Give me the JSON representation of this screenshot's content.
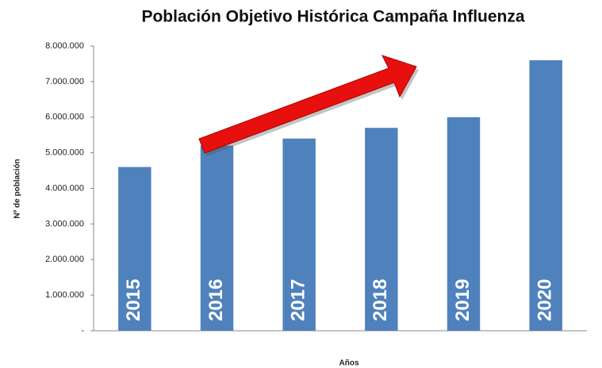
{
  "chart_data": {
    "type": "bar",
    "title": "Población Objetivo Histórica Campaña Influenza",
    "x_label": "Años",
    "y_label": "Nº de población",
    "categories": [
      "2015",
      "2016",
      "2017",
      "2018",
      "2019",
      "2020"
    ],
    "values": [
      4600000,
      5200000,
      5400000,
      5700000,
      6000000,
      7600000
    ],
    "color": "#4f81bd",
    "ylim": [
      0,
      8000000
    ],
    "yticks": [
      {
        "value": 0,
        "label": "-"
      },
      {
        "value": 1000000,
        "label": "1.000.000"
      },
      {
        "value": 2000000,
        "label": "2.000.000"
      },
      {
        "value": 3000000,
        "label": "3.000.000"
      },
      {
        "value": 4000000,
        "label": "4.000.000"
      },
      {
        "value": 5000000,
        "label": "5.000.000"
      },
      {
        "value": 6000000,
        "label": "6.000.000"
      },
      {
        "value": 7000000,
        "label": "7.000.000"
      },
      {
        "value": 8000000,
        "label": "8.000.000"
      }
    ],
    "grid": false
  }
}
